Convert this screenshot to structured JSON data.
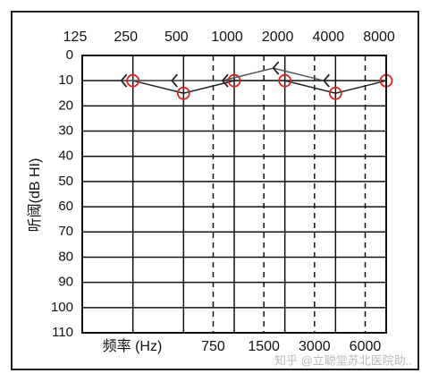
{
  "chart_data": {
    "type": "line",
    "ylabel": "听阈(dB HI)",
    "xlabel": "频率 (Hz)",
    "watermark": "知乎 @立聪堂苏北医院助..",
    "xscale": "log",
    "xlim": [
      125,
      8000
    ],
    "xticks": [
      125,
      250,
      500,
      1000,
      2000,
      4000,
      8000
    ],
    "minor_xticks": [
      750,
      1500,
      3000,
      6000
    ],
    "ylim": [
      0,
      110
    ],
    "y_inverted": true,
    "yticks": [
      0,
      10,
      20,
      30,
      40,
      50,
      60,
      70,
      80,
      90,
      100,
      110
    ],
    "grid": true,
    "series": [
      {
        "marker": "circle",
        "color": "#e02020",
        "line_color": "#222222",
        "x": [
          250,
          500,
          1000,
          2000,
          4000,
          8000
        ],
        "values": [
          10,
          15,
          10,
          10,
          15,
          10
        ]
      },
      {
        "marker": "left-bracket",
        "color": "#222222",
        "line_color": "#555555",
        "x": [
          250,
          500,
          1000,
          2000,
          4000
        ],
        "values": [
          10,
          10,
          10,
          5,
          10
        ]
      }
    ]
  }
}
